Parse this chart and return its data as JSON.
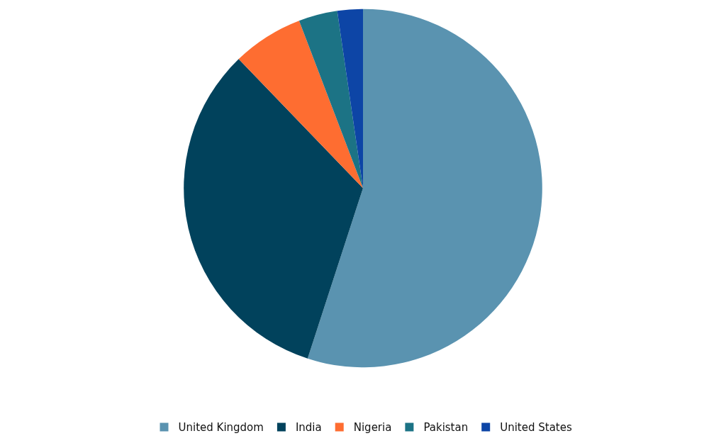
{
  "chart_data": {
    "type": "pie",
    "categories": [
      "United Kingdom",
      "India",
      "Nigeria",
      "Pakistan",
      "United States"
    ],
    "values": [
      55,
      32.8,
      6.4,
      3.5,
      2.3
    ],
    "colors": [
      "#5a93b0",
      "#01425c",
      "#fe6d31",
      "#1c7385",
      "#0d45a6"
    ],
    "legend": "bottom"
  }
}
